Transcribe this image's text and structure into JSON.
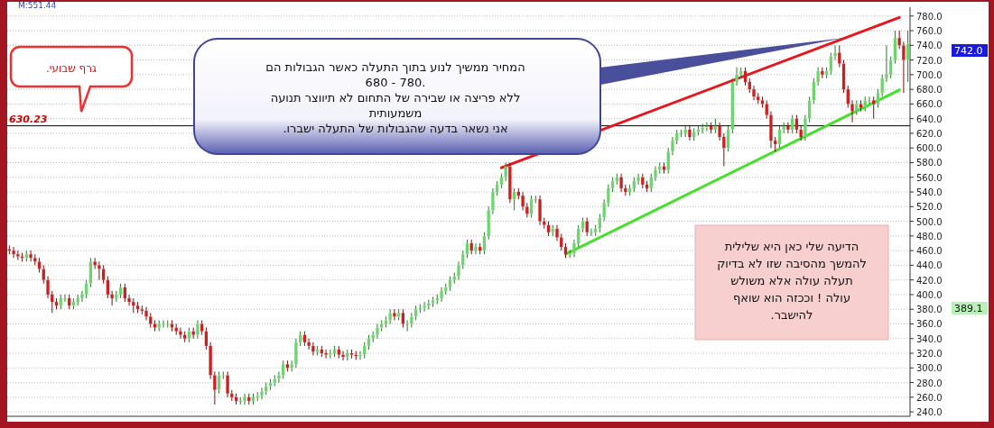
{
  "chart_data": {
    "type": "candlestick",
    "categories": [
      null,
      null,
      null,
      null,
      null,
      null,
      null,
      null,
      null,
      null,
      null,
      null,
      null,
      null,
      null,
      null,
      null,
      null,
      null,
      null,
      null,
      null,
      null,
      null,
      null,
      null,
      null,
      null,
      null,
      null,
      null,
      null,
      null,
      null,
      null,
      null,
      null,
      null,
      null,
      null,
      null,
      null,
      null,
      null,
      null,
      null,
      null,
      null,
      null,
      null,
      null,
      null,
      null,
      null,
      null,
      null,
      null,
      null,
      null,
      null,
      null,
      null,
      null,
      null,
      null,
      null,
      null,
      null,
      null,
      null,
      null,
      null,
      null,
      null,
      null,
      null,
      null,
      null,
      null,
      null,
      null,
      null,
      null,
      null,
      null,
      null,
      null,
      null,
      null,
      null,
      null,
      null,
      null,
      null,
      null,
      null,
      null,
      null,
      null,
      null,
      null,
      null,
      null,
      null,
      null,
      null,
      null,
      null,
      null,
      null,
      null,
      null,
      null,
      null,
      null,
      null,
      null,
      null,
      null,
      null,
      null,
      null,
      null,
      null,
      null,
      null,
      null,
      null,
      null,
      null,
      null,
      null,
      null,
      null,
      null,
      null,
      null,
      null,
      null,
      null,
      null,
      null,
      null,
      null,
      null,
      null,
      null,
      null,
      null,
      null,
      null,
      null,
      null,
      null,
      null,
      null,
      null,
      null,
      null,
      null,
      null,
      null,
      null,
      null,
      null,
      null,
      null,
      null,
      null,
      null,
      null,
      null,
      null,
      null,
      null,
      null,
      null,
      null,
      null,
      null,
      null,
      null,
      null,
      null,
      null,
      null,
      null,
      null,
      null,
      null,
      null,
      null,
      null,
      null,
      null,
      null,
      null,
      null,
      null,
      null,
      null,
      null,
      null,
      null,
      null,
      null,
      null,
      null,
      null,
      null,
      null
    ],
    "ohlc": [
      [
        462,
        467,
        455,
        460
      ],
      [
        460,
        465,
        450,
        455
      ],
      [
        455,
        460,
        447,
        452
      ],
      [
        452,
        457,
        445,
        450
      ],
      [
        450,
        460,
        445,
        455
      ],
      [
        455,
        460,
        445,
        450
      ],
      [
        450,
        455,
        440,
        445
      ],
      [
        445,
        450,
        430,
        435
      ],
      [
        435,
        440,
        415,
        420
      ],
      [
        420,
        425,
        395,
        400
      ],
      [
        400,
        405,
        375,
        390
      ],
      [
        390,
        395,
        380,
        385
      ],
      [
        385,
        400,
        380,
        395
      ],
      [
        395,
        400,
        390,
        395
      ],
      [
        395,
        400,
        380,
        385
      ],
      [
        385,
        395,
        380,
        390
      ],
      [
        390,
        400,
        385,
        395
      ],
      [
        395,
        405,
        390,
        400
      ],
      [
        400,
        420,
        395,
        415
      ],
      [
        415,
        450,
        410,
        445
      ],
      [
        445,
        450,
        435,
        440
      ],
      [
        440,
        445,
        420,
        435
      ],
      [
        435,
        440,
        415,
        420
      ],
      [
        420,
        425,
        395,
        400
      ],
      [
        400,
        405,
        385,
        395
      ],
      [
        395,
        405,
        390,
        400
      ],
      [
        400,
        415,
        395,
        410
      ],
      [
        410,
        415,
        390,
        395
      ],
      [
        395,
        400,
        385,
        390
      ],
      [
        390,
        395,
        375,
        385
      ],
      [
        385,
        390,
        375,
        380
      ],
      [
        380,
        385,
        373,
        378
      ],
      [
        378,
        383,
        365,
        370
      ],
      [
        370,
        375,
        355,
        360
      ],
      [
        360,
        365,
        350,
        355
      ],
      [
        355,
        365,
        350,
        360
      ],
      [
        360,
        365,
        355,
        360
      ],
      [
        360,
        365,
        355,
        360
      ],
      [
        360,
        365,
        350,
        355
      ],
      [
        355,
        360,
        345,
        350
      ],
      [
        350,
        355,
        340,
        345
      ],
      [
        345,
        350,
        335,
        340
      ],
      [
        340,
        355,
        335,
        350
      ],
      [
        350,
        355,
        340,
        345
      ],
      [
        345,
        365,
        340,
        360
      ],
      [
        360,
        365,
        345,
        350
      ],
      [
        350,
        355,
        325,
        330
      ],
      [
        330,
        335,
        285,
        290
      ],
      [
        290,
        295,
        250,
        270
      ],
      [
        270,
        295,
        265,
        290
      ],
      [
        290,
        295,
        285,
        290
      ],
      [
        290,
        295,
        260,
        265
      ],
      [
        265,
        270,
        255,
        260
      ],
      [
        260,
        265,
        250,
        255
      ],
      [
        255,
        260,
        250,
        255
      ],
      [
        255,
        265,
        250,
        260
      ],
      [
        260,
        265,
        250,
        255
      ],
      [
        255,
        265,
        250,
        260
      ],
      [
        260,
        267,
        255,
        262
      ],
      [
        262,
        273,
        257,
        268
      ],
      [
        268,
        280,
        263,
        275
      ],
      [
        275,
        285,
        270,
        280
      ],
      [
        280,
        290,
        275,
        285
      ],
      [
        285,
        295,
        280,
        290
      ],
      [
        290,
        310,
        285,
        305
      ],
      [
        305,
        310,
        295,
        300
      ],
      [
        300,
        310,
        295,
        305
      ],
      [
        305,
        340,
        300,
        335
      ],
      [
        335,
        350,
        330,
        345
      ],
      [
        345,
        350,
        330,
        335
      ],
      [
        335,
        340,
        325,
        330
      ],
      [
        330,
        335,
        317,
        322
      ],
      [
        322,
        330,
        317,
        325
      ],
      [
        325,
        330,
        315,
        320
      ],
      [
        320,
        325,
        313,
        318
      ],
      [
        318,
        325,
        313,
        320
      ],
      [
        320,
        330,
        315,
        325
      ],
      [
        325,
        330,
        313,
        318
      ],
      [
        318,
        323,
        310,
        315
      ],
      [
        315,
        325,
        310,
        320
      ],
      [
        320,
        325,
        313,
        318
      ],
      [
        318,
        323,
        311,
        316
      ],
      [
        316,
        323,
        311,
        318
      ],
      [
        318,
        335,
        313,
        330
      ],
      [
        330,
        345,
        325,
        340
      ],
      [
        340,
        350,
        335,
        345
      ],
      [
        345,
        360,
        340,
        355
      ],
      [
        355,
        365,
        350,
        360
      ],
      [
        360,
        370,
        355,
        365
      ],
      [
        365,
        380,
        360,
        375
      ],
      [
        375,
        380,
        365,
        370
      ],
      [
        370,
        380,
        365,
        375
      ],
      [
        375,
        380,
        355,
        360
      ],
      [
        360,
        365,
        350,
        360
      ],
      [
        360,
        375,
        355,
        370
      ],
      [
        370,
        385,
        365,
        380
      ],
      [
        380,
        387,
        375,
        382
      ],
      [
        382,
        390,
        377,
        385
      ],
      [
        385,
        393,
        380,
        388
      ],
      [
        388,
        397,
        383,
        392
      ],
      [
        392,
        400,
        387,
        395
      ],
      [
        395,
        410,
        390,
        405
      ],
      [
        405,
        415,
        400,
        410
      ],
      [
        410,
        425,
        405,
        420
      ],
      [
        420,
        430,
        415,
        425
      ],
      [
        425,
        445,
        420,
        440
      ],
      [
        440,
        460,
        435,
        455
      ],
      [
        455,
        475,
        450,
        470
      ],
      [
        470,
        475,
        455,
        460
      ],
      [
        460,
        470,
        455,
        465
      ],
      [
        465,
        470,
        455,
        460
      ],
      [
        460,
        485,
        455,
        480
      ],
      [
        480,
        520,
        475,
        515
      ],
      [
        515,
        545,
        510,
        540
      ],
      [
        540,
        555,
        535,
        550
      ],
      [
        550,
        565,
        545,
        560
      ],
      [
        560,
        580,
        555,
        575
      ],
      [
        575,
        580,
        525,
        530
      ],
      [
        530,
        545,
        515,
        540
      ],
      [
        540,
        545,
        530,
        535
      ],
      [
        535,
        540,
        515,
        520
      ],
      [
        520,
        525,
        505,
        510
      ],
      [
        510,
        535,
        505,
        530
      ],
      [
        530,
        535,
        525,
        530
      ],
      [
        530,
        535,
        495,
        500
      ],
      [
        500,
        505,
        490,
        495
      ],
      [
        495,
        500,
        480,
        485
      ],
      [
        485,
        495,
        480,
        490
      ],
      [
        490,
        495,
        473,
        478
      ],
      [
        478,
        483,
        460,
        465
      ],
      [
        465,
        470,
        450,
        455
      ],
      [
        455,
        461,
        450,
        456
      ],
      [
        456,
        475,
        451,
        470
      ],
      [
        470,
        495,
        465,
        490
      ],
      [
        490,
        505,
        485,
        500
      ],
      [
        500,
        505,
        480,
        485
      ],
      [
        485,
        490,
        480,
        485
      ],
      [
        485,
        495,
        480,
        490
      ],
      [
        490,
        510,
        485,
        505
      ],
      [
        505,
        530,
        500,
        525
      ],
      [
        525,
        550,
        520,
        545
      ],
      [
        545,
        560,
        540,
        555
      ],
      [
        555,
        565,
        550,
        560
      ],
      [
        560,
        565,
        540,
        545
      ],
      [
        545,
        550,
        535,
        540
      ],
      [
        540,
        550,
        535,
        545
      ],
      [
        545,
        560,
        540,
        555
      ],
      [
        555,
        565,
        550,
        560
      ],
      [
        560,
        565,
        545,
        550
      ],
      [
        550,
        555,
        540,
        545
      ],
      [
        545,
        565,
        540,
        560
      ],
      [
        560,
        575,
        555,
        570
      ],
      [
        570,
        580,
        565,
        575
      ],
      [
        575,
        580,
        565,
        570
      ],
      [
        570,
        600,
        565,
        595
      ],
      [
        595,
        615,
        590,
        610
      ],
      [
        610,
        625,
        605,
        620
      ],
      [
        620,
        625,
        615,
        620
      ],
      [
        620,
        630,
        615,
        625
      ],
      [
        625,
        630,
        610,
        615
      ],
      [
        615,
        627,
        610,
        622
      ],
      [
        622,
        630,
        617,
        625
      ],
      [
        625,
        633,
        620,
        628
      ],
      [
        628,
        635,
        623,
        630
      ],
      [
        630,
        635,
        620,
        625
      ],
      [
        625,
        640,
        620,
        630
      ],
      [
        630,
        635,
        610,
        615
      ],
      [
        615,
        620,
        575,
        600
      ],
      [
        600,
        630,
        595,
        625
      ],
      [
        625,
        695,
        620,
        690
      ],
      [
        690,
        710,
        685,
        700
      ],
      [
        700,
        710,
        695,
        705
      ],
      [
        705,
        710,
        685,
        690
      ],
      [
        690,
        695,
        675,
        680
      ],
      [
        680,
        685,
        665,
        670
      ],
      [
        670,
        675,
        660,
        665
      ],
      [
        665,
        670,
        655,
        660
      ],
      [
        660,
        665,
        640,
        645
      ],
      [
        645,
        650,
        600,
        610
      ],
      [
        610,
        615,
        595,
        605
      ],
      [
        605,
        630,
        600,
        625
      ],
      [
        625,
        635,
        620,
        630
      ],
      [
        630,
        635,
        620,
        625
      ],
      [
        625,
        645,
        620,
        640
      ],
      [
        640,
        645,
        620,
        625
      ],
      [
        625,
        630,
        610,
        615
      ],
      [
        615,
        645,
        610,
        640
      ],
      [
        640,
        670,
        635,
        665
      ],
      [
        665,
        695,
        660,
        690
      ],
      [
        690,
        710,
        685,
        705
      ],
      [
        705,
        710,
        695,
        700
      ],
      [
        700,
        710,
        695,
        705
      ],
      [
        705,
        730,
        700,
        725
      ],
      [
        725,
        740,
        720,
        730
      ],
      [
        730,
        740,
        710,
        715
      ],
      [
        715,
        720,
        675,
        680
      ],
      [
        680,
        685,
        655,
        660
      ],
      [
        660,
        665,
        635,
        650
      ],
      [
        650,
        665,
        645,
        660
      ],
      [
        660,
        665,
        650,
        655
      ],
      [
        655,
        670,
        650,
        665
      ],
      [
        665,
        670,
        660,
        665
      ],
      [
        665,
        670,
        640,
        660
      ],
      [
        660,
        680,
        655,
        675
      ],
      [
        675,
        700,
        670,
        695
      ],
      [
        695,
        740,
        690,
        700
      ],
      [
        700,
        725,
        695,
        720
      ],
      [
        720,
        760,
        715,
        750
      ],
      [
        750,
        760,
        735,
        740
      ],
      [
        740,
        745,
        675,
        720
      ],
      [
        720,
        760,
        690,
        742
      ]
    ],
    "series": [
      {
        "type": "line",
        "color": "#e8161b",
        "values": [
          null,
          null,
          null,
          null,
          null,
          null,
          null,
          null,
          null,
          null,
          null,
          null,
          null,
          null,
          null,
          null,
          null,
          null,
          null,
          null,
          null,
          null,
          null,
          null,
          null,
          null,
          null,
          null,
          null,
          null,
          null,
          null,
          null,
          null,
          null,
          null,
          null,
          null,
          null,
          null,
          null,
          null,
          null,
          null,
          null,
          null,
          null,
          null,
          null,
          null,
          null,
          null,
          null,
          null,
          null,
          null,
          null,
          null,
          null,
          null,
          null,
          null,
          null,
          null,
          null,
          null,
          null,
          null,
          null,
          null,
          null,
          null,
          null,
          null,
          null,
          null,
          null,
          null,
          null,
          null,
          null,
          null,
          null,
          null,
          null,
          null,
          null,
          null,
          null,
          null,
          null,
          null,
          null,
          null,
          null,
          null,
          null,
          null,
          null,
          null,
          null,
          null,
          null,
          null,
          null,
          null,
          null,
          null,
          null,
          null,
          null,
          null,
          null,
          null,
          null,
          573,
          null,
          null,
          null,
          null,
          null,
          null,
          null,
          null,
          null,
          null,
          null,
          null,
          null,
          null,
          null,
          null,
          null,
          null,
          null,
          null,
          null,
          null,
          null,
          null,
          null,
          null,
          null,
          null,
          null,
          null,
          null,
          null,
          null,
          null,
          null,
          null,
          null,
          null,
          null,
          null,
          null,
          null,
          null,
          null,
          null,
          null,
          null,
          null,
          null,
          null,
          null,
          null,
          null,
          null,
          null,
          null,
          null,
          null,
          null,
          null,
          null,
          null,
          null,
          null,
          null,
          null,
          null,
          null,
          null,
          null,
          null,
          null,
          null,
          null,
          null,
          null,
          null,
          null,
          null,
          null,
          null,
          null,
          null,
          null,
          null,
          null,
          null,
          null,
          null,
          null,
          null,
          null,
          778,
          null,
          null
        ]
      },
      {
        "type": "line",
        "color": "#44e02a",
        "values": [
          null,
          null,
          null,
          null,
          null,
          null,
          null,
          null,
          null,
          null,
          null,
          null,
          null,
          null,
          null,
          null,
          null,
          null,
          null,
          null,
          null,
          null,
          null,
          null,
          null,
          null,
          null,
          null,
          null,
          null,
          null,
          null,
          null,
          null,
          null,
          null,
          null,
          null,
          null,
          null,
          null,
          null,
          null,
          null,
          null,
          null,
          null,
          null,
          null,
          null,
          null,
          null,
          null,
          null,
          null,
          null,
          null,
          null,
          null,
          null,
          null,
          null,
          null,
          null,
          null,
          null,
          null,
          null,
          null,
          null,
          null,
          null,
          null,
          null,
          null,
          null,
          null,
          null,
          null,
          null,
          null,
          null,
          null,
          null,
          null,
          null,
          null,
          null,
          null,
          null,
          null,
          null,
          null,
          null,
          null,
          null,
          null,
          null,
          null,
          null,
          null,
          null,
          null,
          null,
          null,
          null,
          null,
          null,
          null,
          null,
          null,
          null,
          null,
          null,
          null,
          null,
          null,
          null,
          null,
          null,
          null,
          null,
          null,
          null,
          null,
          null,
          null,
          null,
          null,
          null,
          455,
          null,
          null,
          null,
          null,
          null,
          null,
          null,
          null,
          null,
          null,
          null,
          null,
          null,
          null,
          null,
          null,
          null,
          null,
          null,
          null,
          null,
          null,
          null,
          null,
          null,
          null,
          null,
          null,
          null,
          null,
          null,
          null,
          null,
          null,
          null,
          null,
          null,
          null,
          null,
          null,
          null,
          null,
          null,
          null,
          null,
          null,
          null,
          null,
          null,
          null,
          null,
          null,
          null,
          null,
          null,
          null,
          null,
          null,
          null,
          null,
          null,
          null,
          null,
          null,
          null,
          null,
          null,
          null,
          null,
          null,
          null,
          null,
          null,
          null,
          null,
          null,
          null,
          679,
          null,
          null
        ]
      }
    ],
    "ylim": [
      234,
      792
    ],
    "yticks": [
      {
        "value": 240,
        "label": "240.0"
      },
      {
        "value": 260,
        "label": "260.0"
      },
      {
        "value": 280,
        "label": "280.0"
      },
      {
        "value": 300,
        "label": "300.0"
      },
      {
        "value": 320,
        "label": "320.0"
      },
      {
        "value": 340,
        "label": "340.0"
      },
      {
        "value": 360,
        "label": "360.0"
      },
      {
        "value": 380,
        "label": "380.0"
      },
      {
        "value": 400,
        "label": "400.0"
      },
      {
        "value": 420,
        "label": "420.0"
      },
      {
        "value": 440,
        "label": "440.0"
      },
      {
        "value": 460,
        "label": "460.0"
      },
      {
        "value": 480,
        "label": "480.0"
      },
      {
        "value": 500,
        "label": "500.0"
      },
      {
        "value": 520,
        "label": "520.0"
      },
      {
        "value": 540,
        "label": "540.0"
      },
      {
        "value": 560,
        "label": "560.0"
      },
      {
        "value": 580,
        "label": "580.0"
      },
      {
        "value": 600,
        "label": "600.0"
      },
      {
        "value": 620,
        "label": "620.0"
      },
      {
        "value": 640,
        "label": "640.0"
      },
      {
        "value": 660,
        "label": "660.0"
      },
      {
        "value": 680,
        "label": "680.0"
      },
      {
        "value": 700,
        "label": "700.0"
      },
      {
        "value": 720,
        "label": "720.0"
      },
      {
        "value": 740,
        "label": "740.0"
      },
      {
        "value": 760,
        "label": "760.0"
      },
      {
        "value": 780,
        "label": "780.0"
      }
    ],
    "grid": "y",
    "tick_labels": "y",
    "ref_lines": [
      {
        "axis": "y",
        "value": 630.23,
        "label": "630.23",
        "color": "#000000"
      }
    ],
    "annotations": [
      "M:551.44",
      "גרף שבועי.",
      "המחיר ממשיך לנוע בתוך התעלה כאשר הגבולות הם\n.780 - 680\nללא פריצה או שבירה של התחום לא תיווצר תנועה\nמשמעותית\nאני נשאר בדעה שהגבולות של התעלה ישברו.",
      "הדיעה שלי כאן היא שלילית\nלהמשך מהסיבה שזו לא בדיוק\nתעלה עולה אלא משולש\nעולה ! וככזה הוא שואף\nלהישבר.",
      "742.0",
      "389.1"
    ]
  }
}
